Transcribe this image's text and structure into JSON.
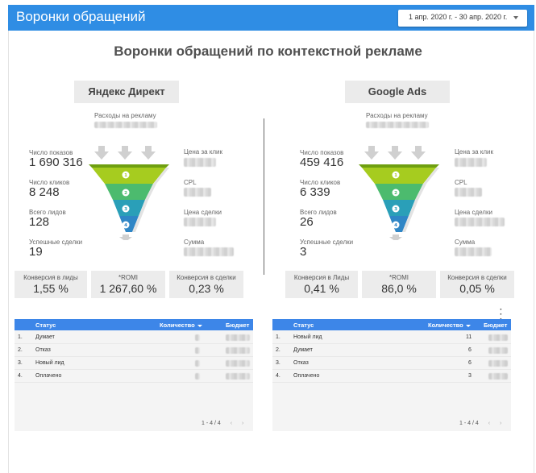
{
  "header": {
    "title": "Воронки обращений",
    "date_range": "1 апр. 2020 г. - 30 апр. 2020 г."
  },
  "report_title": "Воронки обращений по контекстной рекламе",
  "left": {
    "platform": "Яндекс Директ",
    "spend_label": "Расходы на рекламу",
    "metrics": {
      "impressions_label": "Число показов",
      "impressions": "1 690 316",
      "clicks_label": "Число кликов",
      "clicks": "8 248",
      "leads_label": "Всего лидов",
      "leads": "128",
      "deals_label": "Успешные сделки",
      "deals": "19"
    },
    "right_labels": {
      "cpc": "Цена за клик",
      "cpl": "CPL",
      "deal_price": "Цена сделки",
      "sum": "Сумма"
    },
    "kpis": [
      {
        "label": "Конверсия в лиды",
        "value": "1,55 %"
      },
      {
        "label": "*ROMI",
        "value": "1 267,60 %"
      },
      {
        "label": "Конверсия в сделки",
        "value": "0,23 %"
      }
    ],
    "table": {
      "headers": {
        "status": "Статус",
        "qty": "Количество",
        "budget": "Бюджет"
      },
      "rows": [
        {
          "n": "1.",
          "status": "Думает",
          "qty": ""
        },
        {
          "n": "2.",
          "status": "Отказ",
          "qty": ""
        },
        {
          "n": "3.",
          "status": "Новый лид",
          "qty": ""
        },
        {
          "n": "4.",
          "status": "Оплачено",
          "qty": ""
        }
      ],
      "pager": "1 - 4 / 4"
    }
  },
  "right": {
    "platform": "Google Ads",
    "spend_label": "Расходы на рекламу",
    "metrics": {
      "impressions_label": "Число показов",
      "impressions": "459 416",
      "clicks_label": "Число кликов",
      "clicks": "6 339",
      "leads_label": "Всего лидов",
      "leads": "26",
      "deals_label": "Успешные сделки",
      "deals": "3"
    },
    "right_labels": {
      "cpc": "Цена за клик",
      "cpl": "CPL",
      "deal_price": "Цена сделки",
      "sum": "Сумма"
    },
    "kpis": [
      {
        "label": "Конверсия в Лиды",
        "value": "0,41 %"
      },
      {
        "label": "*ROMI",
        "value": "86,0 %"
      },
      {
        "label": "Конверсия в сделки",
        "value": "0,05 %"
      }
    ],
    "table": {
      "headers": {
        "status": "Статус",
        "qty": "Количество",
        "budget": "Бюджет"
      },
      "rows": [
        {
          "n": "1.",
          "status": "Новый лид",
          "qty": "11"
        },
        {
          "n": "2.",
          "status": "Думает",
          "qty": "6"
        },
        {
          "n": "3.",
          "status": "Отказ",
          "qty": "6"
        },
        {
          "n": "4.",
          "status": "Оплачено",
          "qty": "3"
        }
      ],
      "pager": "1 - 4 / 4"
    }
  },
  "funnel_steps": [
    "1",
    "2",
    "3",
    "4"
  ],
  "colors": {
    "header_bg": "#2f8de4",
    "table_header": "#3d86e8",
    "funnel": [
      "#a6cc1f",
      "#4cbb6e",
      "#2a9fb8",
      "#2f86c6"
    ]
  },
  "icons": {
    "more": "vertical-ellipsis-icon",
    "prev": "chevron-left-icon",
    "next": "chevron-right-icon",
    "arrows": "down-arrow-icon"
  }
}
